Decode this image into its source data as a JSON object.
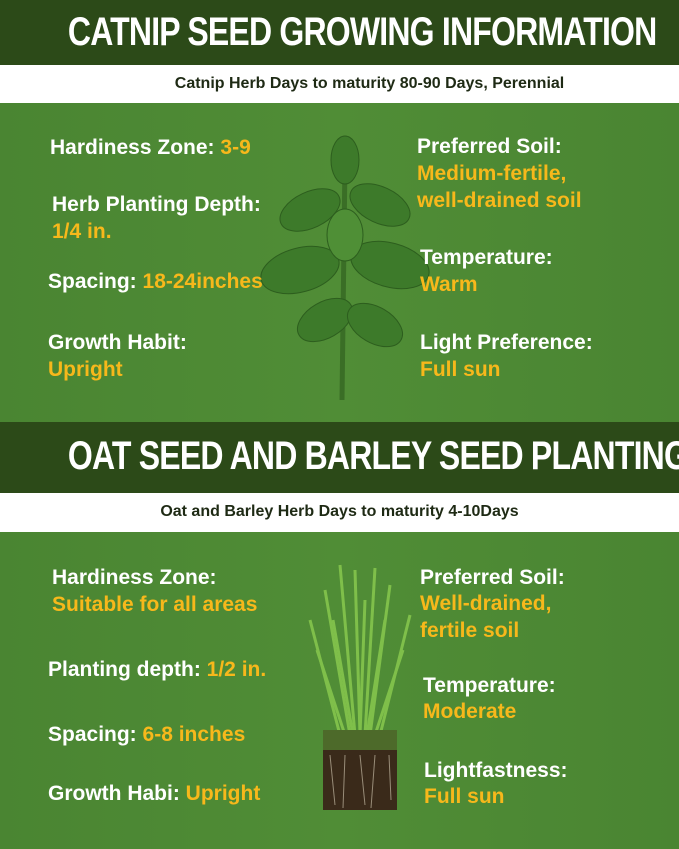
{
  "catnip": {
    "title": "CATNIP SEED GROWING INFORMATION",
    "subtitle": "Catnip Herb Days to maturity 80-90 Days, Perennial",
    "hardiness_label": "Hardiness Zone:",
    "hardiness_value": "3-9",
    "depth_label": "Herb Planting Depth:",
    "depth_value": "1/4 in.",
    "spacing_label": "Spacing:",
    "spacing_value": "18-24inches",
    "habit_label": "Growth Habit:",
    "habit_value": "Upright",
    "soil_label": "Preferred Soil:",
    "soil_value_1": "Medium-fertile,",
    "soil_value_2": "well-drained soil",
    "temp_label": "Temperature:",
    "temp_value": "Warm",
    "light_label": "Light Preference:",
    "light_value": "Full sun"
  },
  "oat_barley": {
    "title": "OAT SEED AND BARLEY SEED PLANTING",
    "subtitle": "Oat and Barley Herb Days to maturity 4-10Days",
    "hardiness_label": "Hardiness Zone:",
    "hardiness_value": "Suitable for all areas",
    "depth_label": "Planting depth:",
    "depth_value": "1/2 in.",
    "spacing_label": "Spacing:",
    "spacing_value": "6-8 inches",
    "habit_label": "Growth Habi:",
    "habit_value": "Upright",
    "soil_label": "Preferred Soil:",
    "soil_value_1": "Well-drained,",
    "soil_value_2": "fertile soil",
    "temp_label": "Temperature:",
    "temp_value": "Moderate",
    "light_label": "Lightfastness:",
    "light_value": "Full sun"
  },
  "colors": {
    "dark_green": "#2c4a18",
    "green": "#4b8633",
    "accent_yellow": "#f7b81b"
  }
}
